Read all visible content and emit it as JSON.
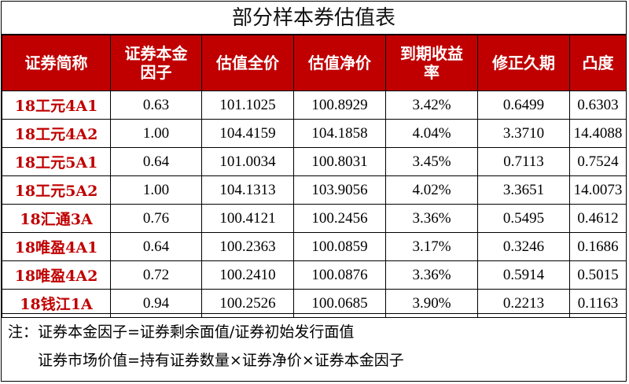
{
  "title": "部分样本券估值表",
  "columns": [
    "证券简称",
    "证券本金\n因子",
    "估值全价",
    "估值净价",
    "到期收益\n率",
    "修正久期",
    "凸度"
  ],
  "rows": [
    [
      "18工元4A1",
      "0.63",
      "101.1025",
      "100.8929",
      "3.42%",
      "0.6499",
      "0.6303"
    ],
    [
      "18工元4A2",
      "1.00",
      "104.4159",
      "104.1858",
      "4.04%",
      "3.3710",
      "14.4088"
    ],
    [
      "18工元5A1",
      "0.64",
      "101.0034",
      "100.8031",
      "3.45%",
      "0.7113",
      "0.7524"
    ],
    [
      "18工元5A2",
      "1.00",
      "104.1313",
      "103.9056",
      "4.02%",
      "3.3651",
      "14.0073"
    ],
    [
      "18汇通3A",
      "0.76",
      "100.4121",
      "100.2456",
      "3.36%",
      "0.5495",
      "0.4612"
    ],
    [
      "18唯盈4A1",
      "0.64",
      "100.2363",
      "100.0859",
      "3.17%",
      "0.3246",
      "0.1686"
    ],
    [
      "18唯盈4A2",
      "0.72",
      "100.2410",
      "100.0876",
      "3.36%",
      "0.5914",
      "0.5015"
    ],
    [
      "18钱江1A",
      "0.94",
      "100.2526",
      "100.0685",
      "3.90%",
      "0.2213",
      "0.1163"
    ]
  ],
  "notes": {
    "line1": "注：证券本金因子=证券剩余面值/证券初始发行面值",
    "line2": "证券市场价值=持有证券数量×证券净价×证券本金因子"
  }
}
